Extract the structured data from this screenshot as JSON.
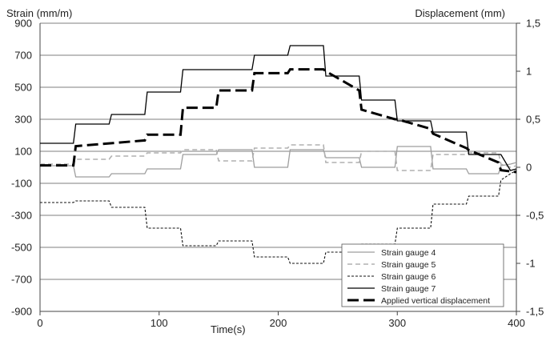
{
  "chart_data": {
    "type": "line",
    "title": "",
    "xlabel": "Time(s)",
    "ylabel": "Strain (mm/m)",
    "y2label": "Displacement (mm)",
    "xlim": [
      0,
      400
    ],
    "ylim": [
      -900,
      900
    ],
    "y2lim": [
      -1.5,
      1.5
    ],
    "xticks": [
      "0",
      "100",
      "200",
      "300",
      "400"
    ],
    "yticks": [
      "900",
      "700",
      "500",
      "300",
      "100",
      "-100",
      "-300",
      "-500",
      "-700",
      "-900"
    ],
    "y2ticks": [
      "1,5",
      "1",
      "0,5",
      "0",
      "-0,5",
      "-1",
      "-1,5"
    ],
    "grid": "horizontal",
    "legend_position": "bottom-right",
    "series": [
      {
        "name": "Strain gauge 4",
        "axis": "left",
        "color": "#9e9e9e",
        "style": "solid",
        "x": [
          0,
          28,
          30,
          58,
          60,
          88,
          90,
          118,
          120,
          148,
          150,
          178,
          180,
          208,
          210,
          238,
          240,
          268,
          270,
          298,
          300,
          328,
          330,
          358,
          360,
          385,
          387,
          395,
          400
        ],
        "y": [
          10,
          10,
          -60,
          -60,
          -40,
          -40,
          -10,
          -10,
          80,
          80,
          110,
          110,
          0,
          0,
          110,
          110,
          60,
          60,
          0,
          0,
          130,
          130,
          -10,
          -10,
          -40,
          -40,
          10,
          20,
          30
        ]
      },
      {
        "name": "Strain gauge 5",
        "axis": "left",
        "color": "#b0b0b0",
        "style": "dashed",
        "x": [
          0,
          28,
          30,
          58,
          60,
          88,
          90,
          118,
          120,
          148,
          150,
          178,
          180,
          208,
          210,
          238,
          240,
          268,
          270,
          298,
          300,
          328,
          330,
          358,
          360,
          385,
          387,
          395,
          400
        ],
        "y": [
          20,
          20,
          50,
          50,
          70,
          70,
          90,
          90,
          110,
          110,
          40,
          40,
          120,
          120,
          140,
          140,
          30,
          30,
          100,
          100,
          -20,
          -20,
          80,
          80,
          90,
          90,
          20,
          0,
          10
        ]
      },
      {
        "name": "Strain gauge 6",
        "axis": "left",
        "color": "#111111",
        "style": "dotted",
        "x": [
          0,
          28,
          30,
          58,
          60,
          88,
          90,
          118,
          120,
          148,
          150,
          178,
          180,
          208,
          210,
          238,
          240,
          268,
          270,
          298,
          300,
          328,
          330,
          358,
          360,
          385,
          387,
          395,
          400
        ],
        "y": [
          -220,
          -220,
          -210,
          -210,
          -250,
          -250,
          -380,
          -380,
          -490,
          -490,
          -460,
          -460,
          -560,
          -560,
          -600,
          -600,
          -530,
          -530,
          -480,
          -480,
          -380,
          -380,
          -230,
          -230,
          -180,
          -180,
          -80,
          -40,
          -20
        ]
      },
      {
        "name": "Strain gauge 7",
        "axis": "left",
        "color": "#000000",
        "style": "solid",
        "x": [
          0,
          28,
          30,
          58,
          60,
          88,
          90,
          118,
          120,
          148,
          150,
          178,
          180,
          208,
          210,
          238,
          240,
          268,
          270,
          298,
          300,
          328,
          330,
          358,
          360,
          385,
          387,
          395,
          400
        ],
        "y": [
          150,
          150,
          270,
          270,
          330,
          330,
          470,
          470,
          610,
          610,
          610,
          610,
          700,
          700,
          760,
          760,
          570,
          570,
          420,
          420,
          290,
          290,
          220,
          220,
          80,
          80,
          80,
          -20,
          -10
        ]
      },
      {
        "name": "Applied vertical displacement",
        "axis": "right",
        "color": "#000000",
        "style": "long-dash",
        "x": [
          0,
          28,
          30,
          88,
          90,
          118,
          120,
          148,
          150,
          178,
          180,
          208,
          210,
          238,
          240,
          268,
          270,
          298,
          300,
          328,
          330,
          358,
          360,
          385,
          387,
          400
        ],
        "y": [
          0.02,
          0.02,
          0.22,
          0.28,
          0.34,
          0.34,
          0.62,
          0.62,
          0.8,
          0.8,
          0.98,
          0.98,
          1.02,
          1.02,
          1.0,
          0.8,
          0.6,
          0.5,
          0.5,
          0.4,
          0.35,
          0.2,
          0.18,
          0.05,
          -0.03,
          -0.05
        ]
      }
    ]
  }
}
